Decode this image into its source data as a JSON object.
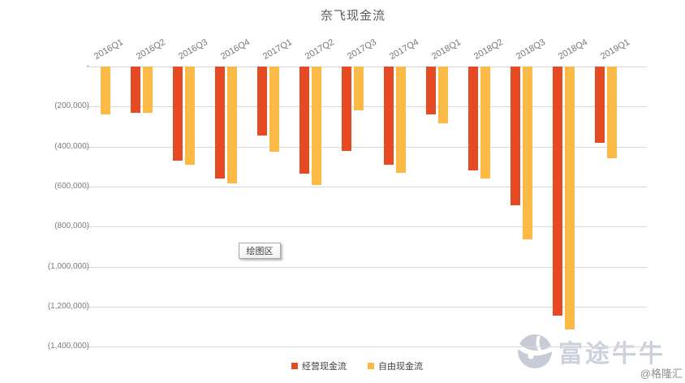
{
  "chart_data": {
    "type": "bar",
    "title": "奈飞现金流",
    "categories": [
      "2016Q1",
      "2016Q2",
      "2016Q3",
      "2016Q4",
      "2017Q1",
      "2017Q2",
      "2017Q3",
      "2017Q4",
      "2018Q1",
      "2018Q2",
      "2018Q3",
      "2018Q4",
      "2019Q1"
    ],
    "series": [
      {
        "name": "经营现金流",
        "key": "operating-cash-flow",
        "color": "#e64a22",
        "values": [
          null,
          -230000,
          -470000,
          -560000,
          -345000,
          -535000,
          -420000,
          -490000,
          -240000,
          -520000,
          -695000,
          -1245000,
          -380000
        ]
      },
      {
        "name": "自由现金流",
        "key": "free-cash-flow",
        "color": "#fdb945",
        "values": [
          -240000,
          -233000,
          -490000,
          -585000,
          -425000,
          -590000,
          -220000,
          -530000,
          -285000,
          -560000,
          -865000,
          -1315000,
          -460000
        ]
      }
    ],
    "y_axis": {
      "min": -1400000,
      "max": 0,
      "tick_step": 200000,
      "ticks": [
        {
          "value": 0,
          "label": "-"
        },
        {
          "value": -200000,
          "label": "(200,000)"
        },
        {
          "value": -400000,
          "label": "(400,000)"
        },
        {
          "value": -600000,
          "label": "(600,000)"
        },
        {
          "value": -800000,
          "label": "(800,000)"
        },
        {
          "value": -1000000,
          "label": "(1,000,000)"
        },
        {
          "value": -1200000,
          "label": "(1,200,000)"
        },
        {
          "value": -1400000,
          "label": "(1,400,000)"
        }
      ]
    },
    "grid": true,
    "legend_position": "bottom",
    "value_format": "negative-parentheses-thousands"
  },
  "plot_area_tooltip": {
    "label": "绘图区"
  },
  "watermark": {
    "brand": "富途牛牛",
    "credit": "@格隆汇"
  }
}
